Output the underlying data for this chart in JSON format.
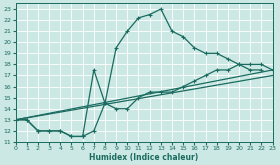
{
  "xlabel": "Humidex (Indice chaleur)",
  "bg_color": "#cce8e4",
  "line_color": "#1a6b60",
  "grid_color": "#b0d8d2",
  "xlim": [
    0,
    23
  ],
  "ylim": [
    11,
    23.5
  ],
  "yticks": [
    11,
    12,
    13,
    14,
    15,
    16,
    17,
    18,
    19,
    20,
    21,
    22,
    23
  ],
  "xticks": [
    0,
    1,
    2,
    3,
    4,
    5,
    6,
    7,
    8,
    9,
    10,
    11,
    12,
    13,
    14,
    15,
    16,
    17,
    18,
    19,
    20,
    21,
    22,
    23
  ],
  "series1_x": [
    0,
    1,
    2,
    3,
    4,
    5,
    6,
    7,
    8,
    9,
    10,
    11,
    12,
    13,
    14,
    15,
    16,
    17,
    18,
    19,
    20,
    21,
    22
  ],
  "series1_y": [
    13,
    13,
    12,
    12,
    12,
    11.5,
    11.5,
    12,
    14.5,
    19.5,
    21,
    22.2,
    22.5,
    23,
    21,
    20.5,
    19.5,
    19,
    19,
    18.5,
    18,
    17.5,
    17.5
  ],
  "series2_x": [
    0,
    1,
    2,
    3,
    4,
    5,
    6,
    7,
    8,
    9,
    10,
    11,
    12,
    13,
    14,
    15,
    16,
    17,
    18,
    19,
    20,
    21,
    22,
    23
  ],
  "series2_y": [
    13,
    13,
    12,
    12,
    12,
    11.5,
    11.5,
    17.5,
    14.5,
    14,
    14,
    15,
    15.5,
    15.5,
    15.5,
    16,
    16.5,
    17,
    17.5,
    17.5,
    18,
    18,
    18,
    17.5
  ],
  "line1_x": [
    0,
    23
  ],
  "line1_y": [
    13,
    17.5
  ],
  "line2_x": [
    0,
    23
  ],
  "line2_y": [
    13,
    17.0
  ]
}
